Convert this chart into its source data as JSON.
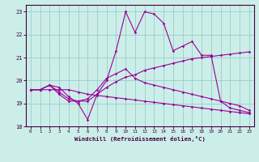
{
  "x": [
    0,
    1,
    2,
    3,
    4,
    5,
    6,
    7,
    8,
    9,
    10,
    11,
    12,
    13,
    14,
    15,
    16,
    17,
    18,
    19,
    20,
    21,
    22,
    23
  ],
  "line1": [
    19.6,
    19.6,
    19.8,
    19.7,
    19.3,
    19.0,
    18.3,
    19.4,
    20.0,
    21.3,
    23.0,
    22.1,
    23.0,
    22.9,
    22.5,
    21.3,
    21.5,
    21.7,
    21.1,
    21.1,
    19.1,
    18.8,
    18.7,
    18.6
  ],
  "line2": [
    19.6,
    19.6,
    19.8,
    19.5,
    19.2,
    19.1,
    19.2,
    19.6,
    20.1,
    20.3,
    20.5,
    20.1,
    19.9,
    19.8,
    19.7,
    19.6,
    19.5,
    19.4,
    19.3,
    19.2,
    19.1,
    19.0,
    18.9,
    18.7
  ],
  "line3": [
    19.6,
    19.6,
    19.8,
    19.4,
    19.1,
    19.1,
    19.1,
    19.4,
    19.7,
    19.95,
    20.15,
    20.25,
    20.45,
    20.55,
    20.65,
    20.75,
    20.85,
    20.95,
    21.0,
    21.05,
    21.1,
    21.15,
    21.2,
    21.25
  ],
  "line4": [
    19.6,
    19.6,
    19.6,
    19.6,
    19.6,
    19.5,
    19.4,
    19.35,
    19.3,
    19.25,
    19.2,
    19.15,
    19.1,
    19.05,
    19.0,
    18.95,
    18.9,
    18.85,
    18.8,
    18.75,
    18.7,
    18.65,
    18.6,
    18.55
  ],
  "bg_color": "#cceee8",
  "grid_color": "#99cccc",
  "line_color": "#990099",
  "xlabel": "Windchill (Refroidissement éolien,°C)",
  "xlim": [
    -0.5,
    23.5
  ],
  "ylim": [
    18.0,
    23.3
  ],
  "yticks": [
    18,
    19,
    20,
    21,
    22,
    23
  ],
  "xticks": [
    0,
    1,
    2,
    3,
    4,
    5,
    6,
    7,
    8,
    9,
    10,
    11,
    12,
    13,
    14,
    15,
    16,
    17,
    18,
    19,
    20,
    21,
    22,
    23
  ]
}
